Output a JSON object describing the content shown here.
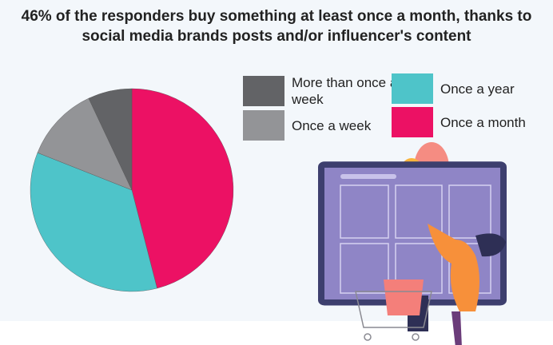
{
  "chart_data": {
    "type": "pie",
    "title": "46% of the responders buy something at least once a month, thanks to social media brands posts and/or influencer's content",
    "slices": [
      {
        "label": "Once a month",
        "value": 46,
        "color": "#ec1164"
      },
      {
        "label": "Once a year",
        "value": 35,
        "color": "#4ec4c9"
      },
      {
        "label": "Once a week",
        "value": 12,
        "color": "#939497"
      },
      {
        "label": "More than once a week",
        "value": 7,
        "color": "#626366"
      }
    ],
    "start_angle": "12 o'clock",
    "direction": "clockwise",
    "legend_placement": "top-right"
  },
  "legend": [
    {
      "label": "More than once a week",
      "color": "#626366"
    },
    {
      "label": "Once a week",
      "color": "#939497"
    },
    {
      "label": "Once a year",
      "color": "#4ec4c9"
    },
    {
      "label": "Once a month",
      "color": "#ec1164"
    }
  ]
}
